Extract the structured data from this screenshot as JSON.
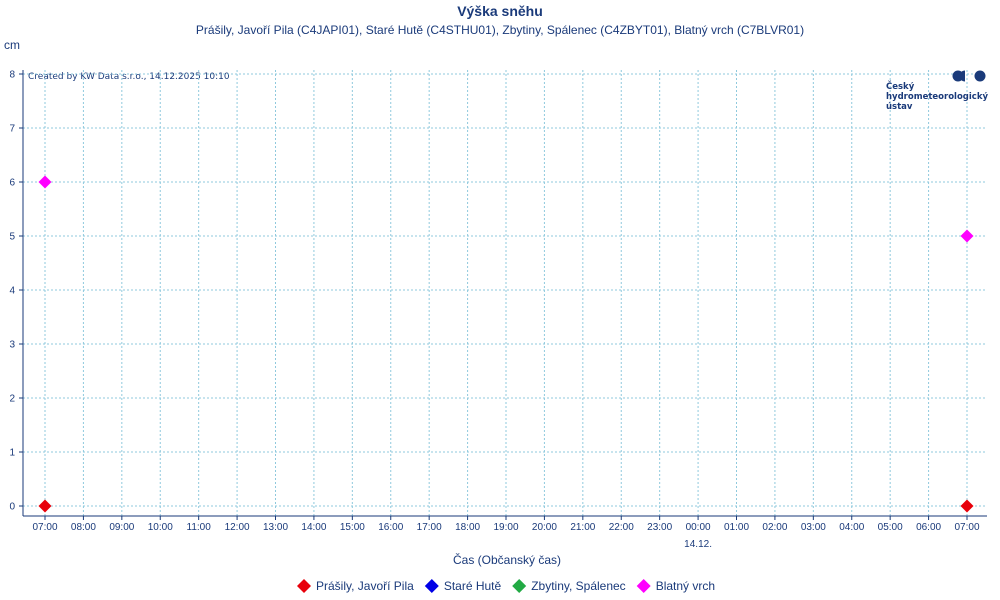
{
  "chart_data": {
    "type": "scatter",
    "title": "Výška sněhu",
    "subtitle": "Prášily, Javoří Pila (C4JAPI01), Staré Hutě (C4STHU01), Zbytiny, Spálenec (C4ZBYT01), Blatný vrch (C7BLVR01)",
    "ylabel": "cm",
    "xlabel": "Čas (Občanský čas)",
    "ylim": [
      0,
      8
    ],
    "yticks": [
      "0",
      "1",
      "2",
      "3",
      "4",
      "5",
      "6",
      "7",
      "8"
    ],
    "xticks": [
      "07:00",
      "08:00",
      "09:00",
      "10:00",
      "11:00",
      "12:00",
      "13:00",
      "14:00",
      "15:00",
      "16:00",
      "17:00",
      "18:00",
      "19:00",
      "20:00",
      "21:00",
      "22:00",
      "23:00",
      "00:00",
      "01:00",
      "02:00",
      "03:00",
      "04:00",
      "05:00",
      "06:00",
      "07:00"
    ],
    "date_label": "14.12.",
    "date_label_at": "00:00",
    "grid": true,
    "legend_position": "bottom",
    "series": [
      {
        "name": "Prášily, Javoří Pila",
        "color": "#e8000b",
        "points": [
          {
            "x": "07:00",
            "y": 0
          },
          {
            "x": "07:00",
            "y": 0
          }
        ]
      },
      {
        "name": "Staré Hutě",
        "color": "#0000e6",
        "points": []
      },
      {
        "name": "Zbytiny, Spálenec",
        "color": "#22aa44",
        "points": []
      },
      {
        "name": "Blatný vrch",
        "color": "#ff00ff",
        "points": [
          {
            "x": "07:00",
            "y": 6
          },
          {
            "x": "07:00",
            "y": 5
          }
        ]
      }
    ],
    "credit": "Created by KW Data s.r.o., 14.12.2025 10:10"
  },
  "logo": {
    "lines": [
      "Český",
      "hydrometeorologický",
      "ústav"
    ]
  }
}
